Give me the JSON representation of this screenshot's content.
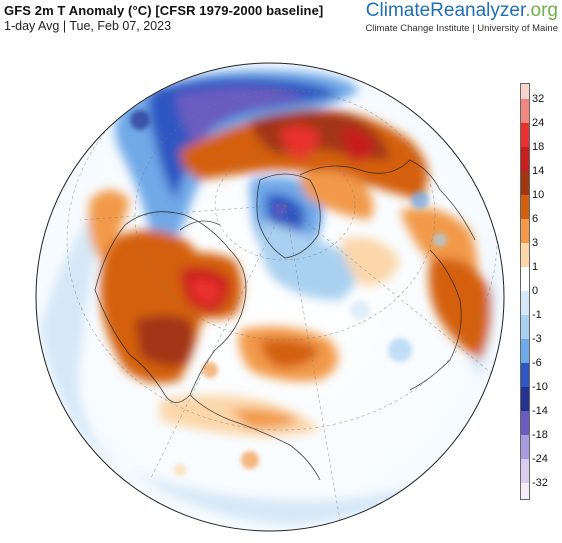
{
  "header": {
    "title": "GFS 2m T Anomaly (°C) [CFSR 1979-2000 baseline]",
    "subtitle": "1-day Avg | Tue, Feb 07, 2023"
  },
  "brand": {
    "name_main": "ClimateReanalyzer",
    "name_suffix": ".org",
    "affiliation": "Climate Change Institute | University of Maine"
  },
  "legend": {
    "labels": [
      "32",
      "24",
      "18",
      "14",
      "10",
      "6",
      "3",
      "1",
      "0",
      "-1",
      "-3",
      "-6",
      "-10",
      "-14",
      "-18",
      "-24",
      "-32"
    ],
    "colors": [
      "#f7d4d0",
      "#f08a80",
      "#e8302c",
      "#c71e1e",
      "#a23612",
      "#d4600f",
      "#f29a4a",
      "#fbd7aa",
      "#ffffff",
      "#d6e8f7",
      "#a9d0f0",
      "#6fa9e8",
      "#2f56c2",
      "#25318e",
      "#6b5bc0",
      "#a99be0",
      "#d8cdf1",
      "#f5eefa"
    ]
  },
  "palette": {
    "background": "#ffffff",
    "ocean_neutral": "#ffffff",
    "warm_light": "#fbd7aa",
    "warm_mid": "#f29a4a",
    "warm_dark": "#d4600f",
    "hot": "#e8302c",
    "cool_light": "#d6e8f7",
    "cool_mid": "#a9d0f0",
    "cold": "#2f56c2",
    "very_cold": "#6b5bc0",
    "brand_blue": "#1f6fb5",
    "brand_green": "#6fb24a"
  }
}
